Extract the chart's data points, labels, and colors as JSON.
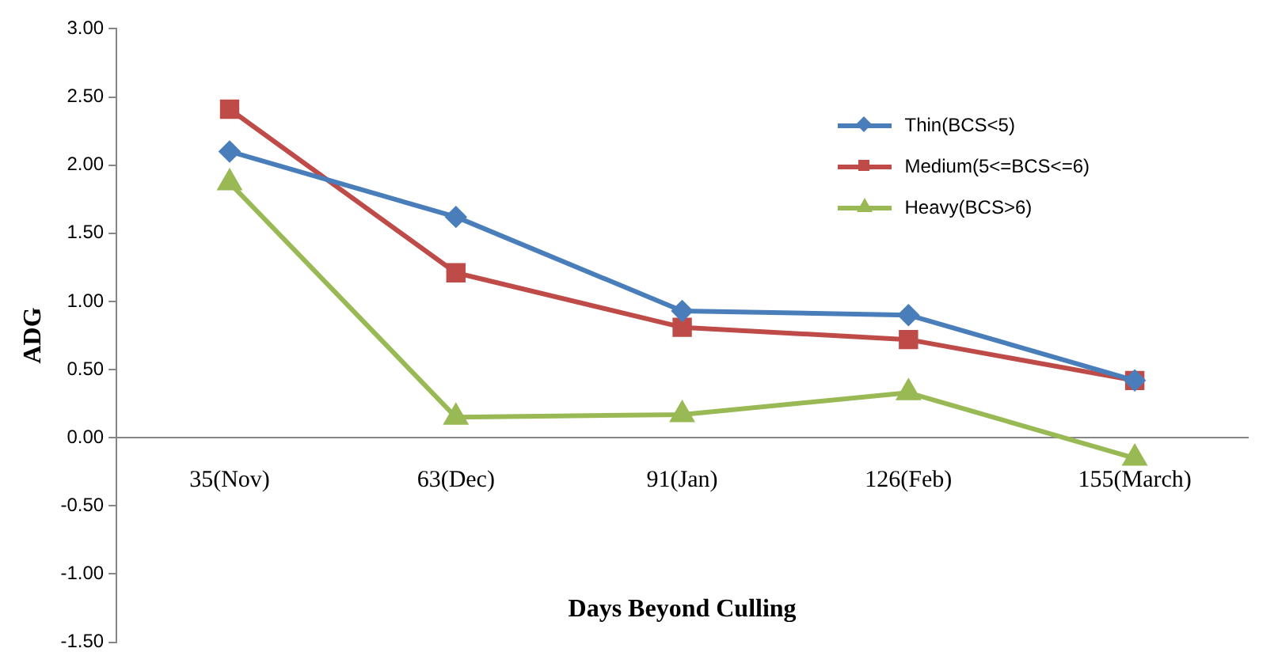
{
  "chart_data": {
    "type": "line",
    "xlabel": "Days Beyond Culling",
    "ylabel": "ADG",
    "categories": [
      "35(Nov)",
      "63(Dec)",
      "91(Jan)",
      "126(Feb)",
      "155(March)"
    ],
    "series": [
      {
        "name": "Thin(BCS<5)",
        "color": "#4a7ebb",
        "marker": "diamond",
        "values": [
          2.1,
          1.62,
          0.93,
          0.9,
          0.42
        ]
      },
      {
        "name": "Medium(5<=BCS<=6)",
        "color": "#be4b48",
        "marker": "square",
        "values": [
          2.41,
          1.21,
          0.81,
          0.72,
          0.42
        ]
      },
      {
        "name": "Heavy(BCS>6)",
        "color": "#98b954",
        "marker": "triangle",
        "values": [
          1.87,
          0.15,
          0.17,
          0.33,
          -0.15
        ]
      }
    ],
    "ylim": [
      -1.5,
      3
    ],
    "yticks": [
      {
        "value": -1.5,
        "label": "-1.50"
      },
      {
        "value": -1,
        "label": "-1.00"
      },
      {
        "value": -0.5,
        "label": "-0.50"
      },
      {
        "value": 0,
        "label": "0.00"
      },
      {
        "value": 0.5,
        "label": "0.50"
      },
      {
        "value": 1,
        "label": "1.00"
      },
      {
        "value": 1.5,
        "label": "1.50"
      },
      {
        "value": 2,
        "label": "2.00"
      },
      {
        "value": 2.5,
        "label": "2.50"
      },
      {
        "value": 3,
        "label": "3.00"
      }
    ],
    "grid": false,
    "legend": "top right",
    "line_style": "solid"
  }
}
